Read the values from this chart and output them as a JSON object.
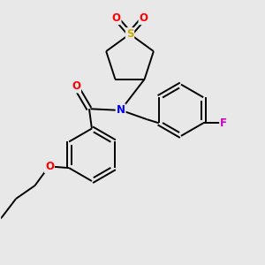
{
  "background_color": "#e8e8e8",
  "bond_color": "#000000",
  "atom_colors": {
    "O": "#ff0000",
    "N": "#0000ff",
    "S": "#ccaa00",
    "F": "#cc00cc",
    "C": "#000000"
  },
  "figsize": [
    3.0,
    3.0
  ],
  "dpi": 100,
  "lw": 1.4,
  "fs": 8.5
}
